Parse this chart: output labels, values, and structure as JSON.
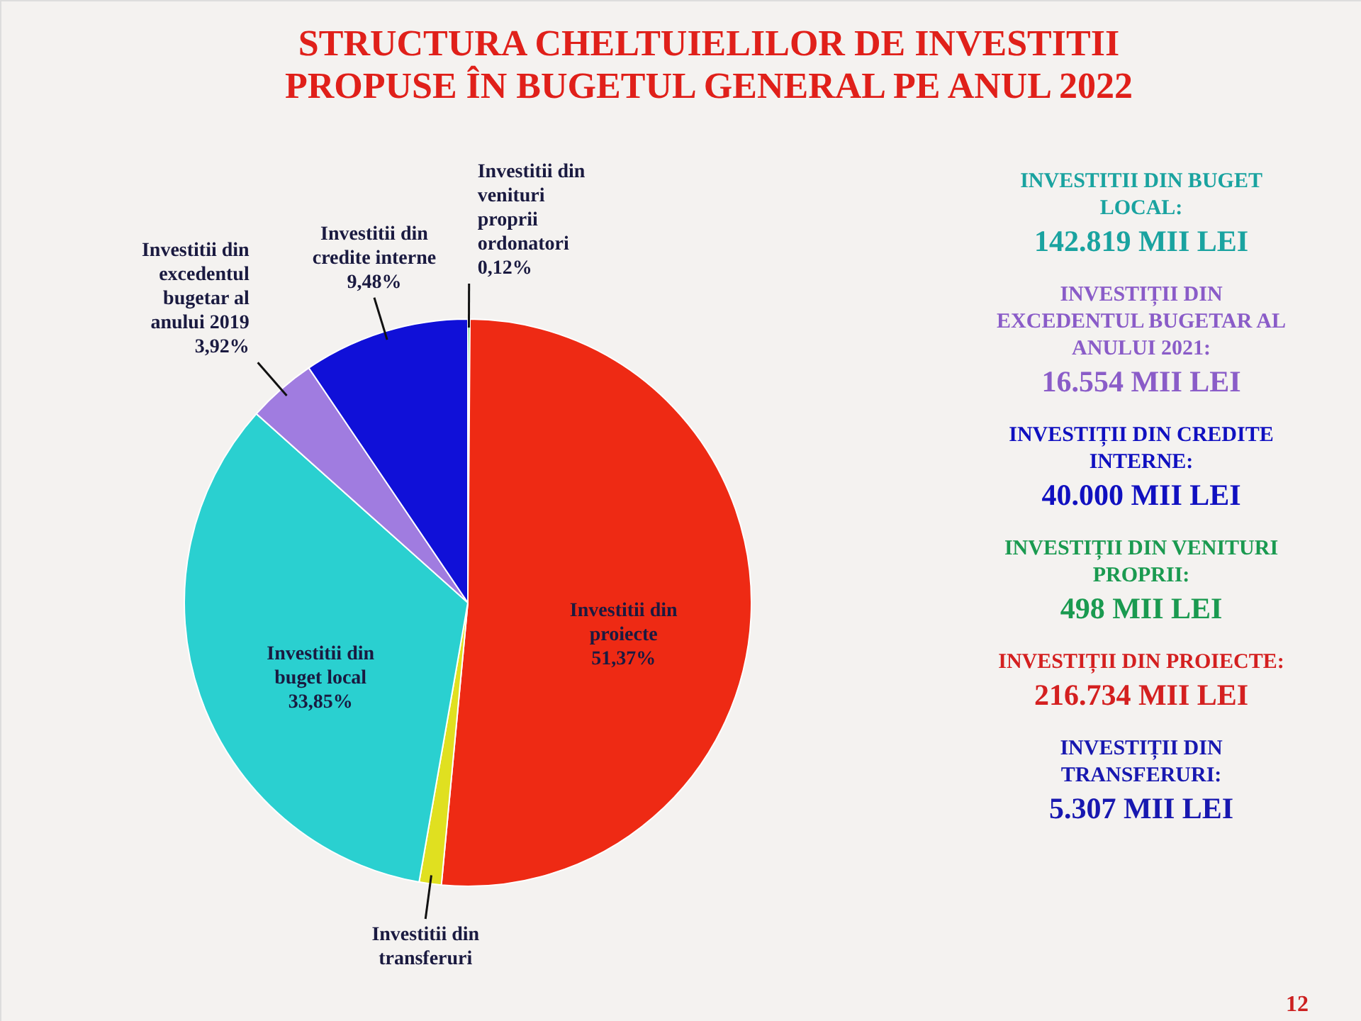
{
  "chart_data": {
    "type": "pie",
    "title": "STRUCTURA CHELTUIELILOR DE INVESTITII PROPUSE ÎN BUGETUL GENERAL PE ANUL 2022",
    "categories": [
      "Investitii din venituri proprii ordonatori",
      "Investitii din proiecte",
      "Investitii din transferuri",
      "Investitii din buget local",
      "Investitii din excedentul bugetar al anului 2019",
      "Investitii din credite interne"
    ],
    "values": [
      0.12,
      51.37,
      1.26,
      33.85,
      3.92,
      9.48
    ],
    "value_labels": [
      "0,12%",
      "51,37%",
      null,
      "33,85%",
      "3,92%",
      "9,48%"
    ],
    "colors": [
      "#22c03a",
      "#ee2a14",
      "#e0e020",
      "#2ad0d0",
      "#a07ce0",
      "#1010d8"
    ],
    "annotations": [
      "INVESTITII DIN BUGET LOCAL:",
      "142.819 MII LEI",
      "INVESTIȚII DIN EXCEDENTUL BUGETAR AL ANULUI 2021:",
      "16.554 MII LEI",
      "INVESTIȚII DIN CREDITE INTERNE:",
      "40.000 MII LEI",
      "INVESTIȚII DIN VENITURI PROPRII:",
      "498 MII LEI",
      "INVESTIȚII DIN PROIECTE:",
      "216.734 MII LEI",
      "INVESTIȚII DIN TRANSFERURI:",
      "5.307 MII LEI",
      "12"
    ]
  }
}
